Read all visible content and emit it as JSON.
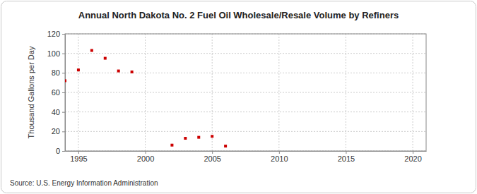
{
  "chart_data": {
    "type": "scatter",
    "title": "Annual North Dakota No. 2 Fuel Oil Wholesale/Resale Volume by Refiners",
    "y_label": "Thousand Gallons per Day",
    "annotations": [
      "Source: U.S. Energy Information Administration"
    ],
    "x": [
      1994,
      1995,
      1996,
      1997,
      1998,
      1999,
      2002,
      2003,
      2004,
      2005,
      2006
    ],
    "values": [
      72,
      83,
      103,
      95,
      82,
      81,
      6,
      13,
      14,
      15,
      5
    ],
    "color": "#cc0000",
    "marker": "square",
    "xlim": [
      1994,
      2021
    ],
    "xticks": [
      1995,
      2000,
      2005,
      2010,
      2015,
      2020
    ],
    "ylim": [
      0,
      120
    ],
    "yticks": [
      0,
      20,
      40,
      60,
      80,
      100,
      120
    ],
    "grid": true
  }
}
